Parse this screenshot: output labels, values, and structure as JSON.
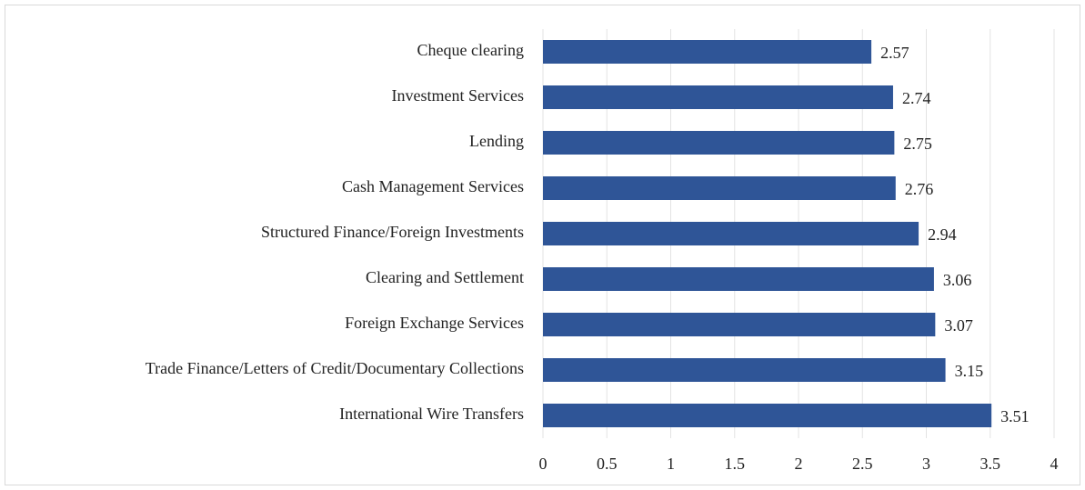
{
  "chart_data": {
    "type": "barh",
    "categories": [
      "Cheque clearing",
      "Investment Services",
      "Lending",
      "Cash Management Services",
      "Structured Finance/Foreign Investments",
      "Clearing and Settlement",
      "Foreign Exchange Services",
      "Trade Finance/Letters of Credit/Documentary Collections",
      "International Wire Transfers"
    ],
    "values": [
      2.57,
      2.74,
      2.75,
      2.76,
      2.94,
      3.06,
      3.07,
      3.15,
      3.51
    ],
    "color": "#2f5597",
    "xlim": [
      0,
      4
    ],
    "xticks": [
      0,
      0.5,
      1,
      1.5,
      2,
      2.5,
      3,
      3.5,
      4
    ],
    "grid": true
  }
}
